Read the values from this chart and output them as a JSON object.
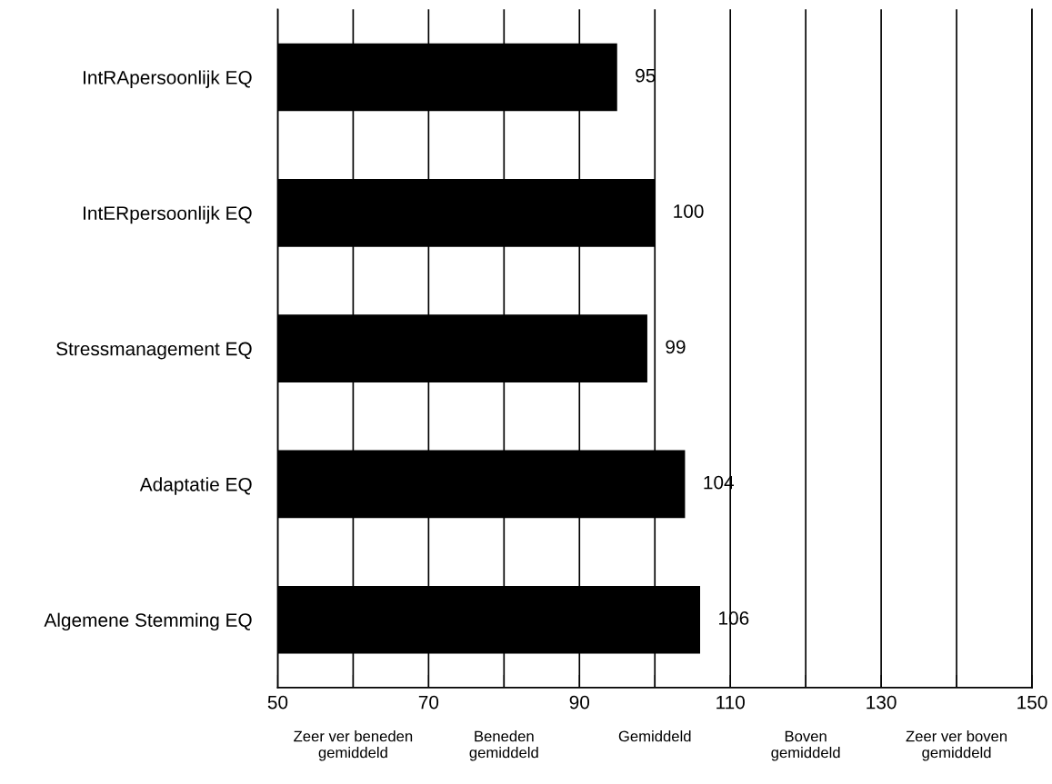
{
  "chart_data": {
    "type": "bar",
    "orientation": "horizontal",
    "categories": [
      "IntRApersoonlijk EQ",
      "IntERpersoonlijk EQ",
      "Stressmanagement EQ",
      "Adaptatie EQ",
      "Algemene Stemming EQ"
    ],
    "values": [
      95,
      100,
      99,
      104,
      106
    ],
    "color": "#000000",
    "data_labels": true,
    "xlim": [
      50,
      150
    ],
    "xticks": [
      50,
      {
        "value": 60,
        "label": null
      },
      70,
      {
        "value": 80,
        "label": null
      },
      90,
      {
        "value": 100,
        "label": null
      },
      110,
      {
        "value": 120,
        "label": null
      },
      130,
      {
        "value": 140,
        "label": null
      },
      150
    ],
    "grid": "x",
    "legend": false,
    "annotations": [
      "Zeer ver beneden\ngemiddeld",
      "Beneden\ngemiddeld",
      "Gemiddeld",
      "Boven\ngemiddeld",
      "Zeer ver boven\ngemiddeld"
    ]
  }
}
